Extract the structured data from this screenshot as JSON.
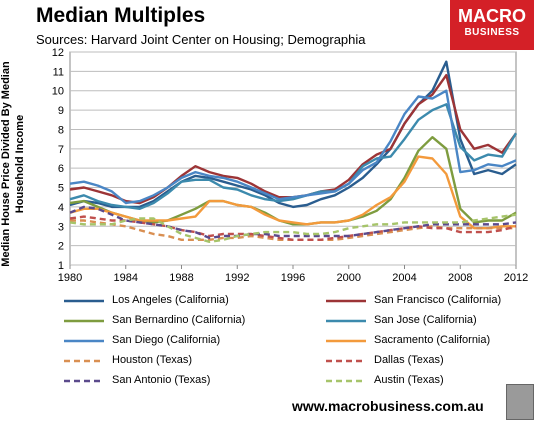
{
  "header": {
    "title": "Median Multiples",
    "subtitle": "Sources: Harvard Joint Center on Housing; Demographia"
  },
  "logo": {
    "line1": "MACRO",
    "line2": "BUSINESS",
    "color": "#d42027"
  },
  "footer": {
    "url": "www.macrobusiness.com.au"
  },
  "chart_data": {
    "type": "line",
    "title": "Median Multiples",
    "ylabel": "Median House Price Divided By Median Household Income",
    "xlabel": "",
    "xlim": [
      1980,
      2012
    ],
    "ylim": [
      1,
      12
    ],
    "xticks": [
      "1980",
      "1984",
      "1988",
      "1992",
      "1996",
      "2000",
      "2004",
      "2008",
      "2012"
    ],
    "yticks": [
      "1",
      "2",
      "3",
      "4",
      "5",
      "6",
      "7",
      "8",
      "9",
      "10",
      "11",
      "12"
    ],
    "grid": true,
    "legend_position": "bottom",
    "x": [
      1980,
      1981,
      1982,
      1983,
      1984,
      1985,
      1986,
      1987,
      1988,
      1989,
      1990,
      1991,
      1992,
      1993,
      1994,
      1995,
      1996,
      1997,
      1998,
      1999,
      2000,
      2001,
      2002,
      2003,
      2004,
      2005,
      2006,
      2007,
      2008,
      2009,
      2010,
      2011,
      2012
    ],
    "series": [
      {
        "name": "Los Angeles (California)",
        "color": "#2a5d8f",
        "dash": false,
        "values": [
          4.1,
          4.3,
          4.2,
          4.0,
          4.0,
          4.0,
          4.3,
          4.8,
          5.3,
          5.6,
          5.5,
          5.3,
          5.1,
          4.9,
          4.6,
          4.2,
          4.0,
          4.1,
          4.4,
          4.6,
          5.0,
          5.5,
          6.2,
          7.0,
          8.3,
          9.3,
          10.0,
          11.5,
          7.5,
          5.7,
          5.9,
          5.7,
          6.2
        ]
      },
      {
        "name": "San Francisco (California)",
        "color": "#9c3436",
        "dash": false,
        "values": [
          4.9,
          5.0,
          4.8,
          4.6,
          4.3,
          4.2,
          4.5,
          5.0,
          5.6,
          6.1,
          5.8,
          5.6,
          5.5,
          5.2,
          4.8,
          4.5,
          4.5,
          4.6,
          4.8,
          4.9,
          5.4,
          6.2,
          6.7,
          7.0,
          8.3,
          9.3,
          9.8,
          10.8,
          8.0,
          7.0,
          7.2,
          6.8,
          7.8
        ]
      },
      {
        "name": "San Bernardino (California)",
        "color": "#7e9c3f",
        "dash": false,
        "values": [
          4.2,
          4.3,
          4.0,
          3.7,
          3.5,
          3.3,
          3.2,
          3.3,
          3.6,
          3.9,
          4.3,
          4.3,
          4.1,
          4.0,
          3.7,
          3.3,
          3.1,
          3.1,
          3.2,
          3.2,
          3.3,
          3.5,
          3.8,
          4.4,
          5.5,
          6.9,
          7.6,
          7.0,
          3.9,
          3.2,
          3.3,
          3.3,
          3.7
        ]
      },
      {
        "name": "San Jose (California)",
        "color": "#3c8aad",
        "dash": false,
        "values": [
          4.4,
          4.6,
          4.3,
          4.1,
          4.0,
          3.9,
          4.2,
          4.7,
          5.3,
          5.4,
          5.4,
          5.0,
          4.9,
          4.6,
          4.4,
          4.3,
          4.4,
          4.6,
          4.8,
          4.8,
          5.2,
          6.1,
          6.5,
          6.6,
          7.5,
          8.5,
          9.0,
          9.3,
          7.1,
          6.4,
          6.7,
          6.6,
          7.8
        ]
      },
      {
        "name": "San Diego (California)",
        "color": "#4a86c5",
        "dash": false,
        "values": [
          5.2,
          5.3,
          5.1,
          4.8,
          4.2,
          4.3,
          4.6,
          5.0,
          5.5,
          5.8,
          5.6,
          5.5,
          5.3,
          5.0,
          4.7,
          4.4,
          4.5,
          4.6,
          4.7,
          4.8,
          5.2,
          5.9,
          6.3,
          7.4,
          8.8,
          9.7,
          9.6,
          10.0,
          5.8,
          5.9,
          6.2,
          6.1,
          6.4
        ]
      },
      {
        "name": "Sacramento (California)",
        "color": "#f39a3c",
        "dash": false,
        "values": [
          3.7,
          3.9,
          3.9,
          3.7,
          3.5,
          3.3,
          3.3,
          3.3,
          3.4,
          3.5,
          4.3,
          4.3,
          4.1,
          4.0,
          3.6,
          3.3,
          3.2,
          3.1,
          3.2,
          3.2,
          3.3,
          3.6,
          4.1,
          4.5,
          5.3,
          6.6,
          6.5,
          5.7,
          3.5,
          2.9,
          2.9,
          3.0,
          3.0
        ]
      },
      {
        "name": "Houston (Texas)",
        "color": "#d98f52",
        "dash": true,
        "values": [
          3.3,
          3.3,
          3.2,
          3.1,
          3.0,
          2.8,
          2.6,
          2.5,
          2.3,
          2.3,
          2.3,
          2.4,
          2.4,
          2.5,
          2.4,
          2.3,
          2.3,
          2.3,
          2.3,
          2.3,
          2.4,
          2.5,
          2.6,
          2.7,
          2.8,
          2.9,
          3.0,
          2.9,
          2.9,
          2.9,
          2.9,
          2.9,
          2.9
        ]
      },
      {
        "name": "Dallas (Texas)",
        "color": "#c0504d",
        "dash": true,
        "values": [
          3.4,
          3.5,
          3.4,
          3.3,
          3.3,
          3.2,
          3.1,
          3.0,
          2.8,
          2.7,
          2.5,
          2.6,
          2.6,
          2.6,
          2.5,
          2.4,
          2.3,
          2.3,
          2.3,
          2.4,
          2.5,
          2.6,
          2.7,
          2.8,
          2.9,
          3.0,
          2.9,
          2.9,
          2.7,
          2.7,
          2.7,
          2.8,
          3.0
        ]
      },
      {
        "name": "San Antonio (Texas)",
        "color": "#5b4a8c",
        "dash": true,
        "values": [
          3.7,
          4.0,
          3.9,
          3.6,
          3.3,
          3.2,
          3.1,
          3.0,
          2.8,
          2.7,
          2.4,
          2.5,
          2.5,
          2.6,
          2.6,
          2.5,
          2.5,
          2.5,
          2.5,
          2.5,
          2.5,
          2.6,
          2.7,
          2.8,
          2.9,
          3.0,
          3.1,
          3.1,
          3.1,
          3.1,
          3.1,
          3.1,
          3.2
        ]
      },
      {
        "name": "Austin (Texas)",
        "color": "#a6c46a",
        "dash": true,
        "values": [
          3.2,
          3.1,
          3.1,
          3.1,
          3.3,
          3.4,
          3.4,
          3.0,
          2.6,
          2.4,
          2.2,
          2.3,
          2.5,
          2.6,
          2.7,
          2.7,
          2.7,
          2.6,
          2.6,
          2.7,
          2.9,
          3.0,
          3.1,
          3.1,
          3.2,
          3.2,
          3.2,
          3.2,
          3.2,
          3.3,
          3.4,
          3.5,
          3.6
        ]
      }
    ]
  }
}
